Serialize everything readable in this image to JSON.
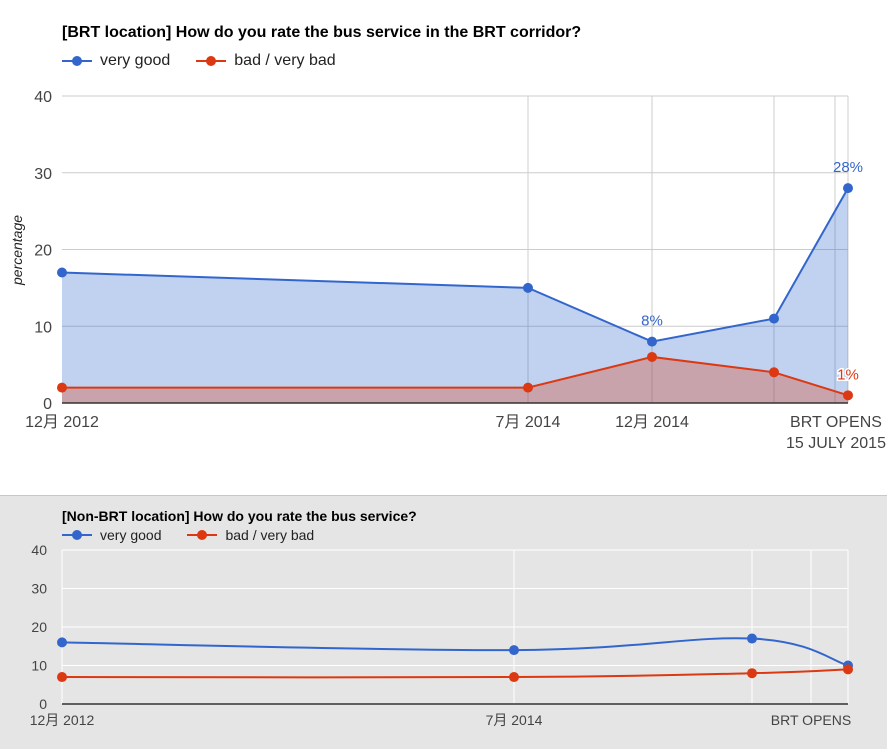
{
  "chart_data": [
    {
      "type": "area",
      "title": "[BRT location] How do you rate the bus service in the BRT corridor?",
      "xlabel": "",
      "ylabel": "percentage",
      "ylim": [
        0,
        40
      ],
      "y_ticks": [
        "0",
        "10",
        "20",
        "30",
        "40"
      ],
      "x": [
        "2012-12",
        "2014-07",
        "2014-12",
        "2015-06",
        "2015-07-15"
      ],
      "x_tick_labels": [
        "12月 2012",
        "7月 2014",
        "12月 2014",
        "BRT OPENS\n15 JULY 2015"
      ],
      "series": [
        {
          "name": "very good",
          "color": "#3366cc",
          "values": [
            17,
            15,
            8,
            11,
            28
          ]
        },
        {
          "name": "bad / very bad",
          "color": "#dc3912",
          "values": [
            2,
            2,
            6,
            4,
            1
          ]
        }
      ],
      "annotations": [
        {
          "series": "very good",
          "x": "2014-12",
          "text": "8%"
        },
        {
          "series": "very good",
          "x": "2015-07-15",
          "text": "28%"
        },
        {
          "series": "bad / very bad",
          "x": "2015-07-15",
          "text": "1%"
        }
      ],
      "legend_position": "top-left",
      "grid": true
    },
    {
      "type": "line",
      "title": "[Non-BRT location] How do you rate the bus service?",
      "xlabel": "",
      "ylabel": "",
      "ylim": [
        0,
        40
      ],
      "y_ticks": [
        "0",
        "10",
        "20",
        "30",
        "40"
      ],
      "x": [
        "2012-12",
        "2014-07",
        "2015-06",
        "2015-07-15"
      ],
      "x_tick_labels": [
        "12月 2012",
        "7月 2014",
        "BRT OPENS"
      ],
      "series": [
        {
          "name": "very good",
          "color": "#3366cc",
          "values": [
            16,
            14,
            17,
            10
          ]
        },
        {
          "name": "bad / very bad",
          "color": "#dc3912",
          "values": [
            7,
            7,
            8,
            9
          ]
        }
      ],
      "legend_position": "top-left",
      "grid": true,
      "smooth": true
    }
  ]
}
